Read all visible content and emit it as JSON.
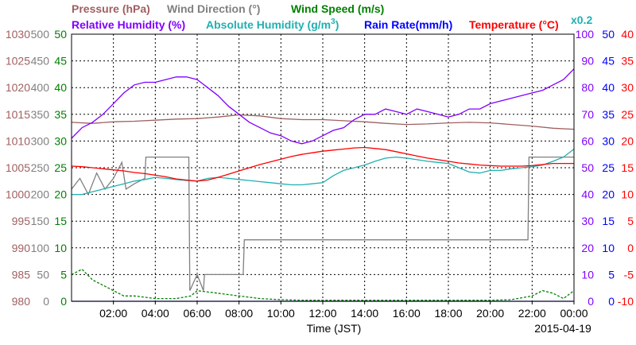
{
  "chart_data": {
    "type": "line",
    "date": "2015-04-19",
    "xlabel": "Time (JST)",
    "x_ticks": [
      "02:00",
      "04:00",
      "06:00",
      "08:00",
      "10:00",
      "12:00",
      "14:00",
      "16:00",
      "18:00",
      "20:00",
      "22:00",
      "00:00"
    ],
    "xlim_hours": [
      0,
      24
    ],
    "grid": true,
    "legend": [
      {
        "text": "Pressure (hPa)",
        "color": "#a06060"
      },
      {
        "text": "Wind Direction (°)",
        "color": "#808080"
      },
      {
        "text": "Wind Speed (m/s)",
        "color": "#008000"
      },
      {
        "text": "Relative Humidity (%)",
        "color": "#8000ff"
      },
      {
        "text": "Absolute Humidity (g/m",
        "sup": "3",
        "close": ")",
        "color": "#20b0b0"
      },
      {
        "text": "Rain Rate(mm/h)",
        "color": "#0000ff"
      },
      {
        "text": "Temperature (°C)",
        "color": "#ff0000"
      },
      {
        "text": "x0.2",
        "color": "#20b0b0"
      }
    ],
    "axes": {
      "pressure": {
        "color": "#a06060",
        "ylim": [
          980,
          1030
        ],
        "ticks": [
          "980",
          "985",
          "990",
          "995",
          "1000",
          "1005",
          "1010",
          "1015",
          "1020",
          "1025",
          "1030"
        ]
      },
      "wind_direction": {
        "color": "#808080",
        "ylim": [
          0,
          500
        ],
        "ticks": [
          "0",
          "50",
          "100",
          "150",
          "200",
          "250",
          "300",
          "350",
          "400",
          "450",
          "500"
        ]
      },
      "wind_speed": {
        "color": "#008000",
        "ylim": [
          0,
          50
        ],
        "ticks": [
          "0",
          "5",
          "10",
          "15",
          "20",
          "25",
          "30",
          "35",
          "40",
          "45",
          "50"
        ]
      },
      "relative_humidity": {
        "color": "#8000ff",
        "ylim": [
          0,
          100
        ],
        "ticks": [
          "0",
          "10",
          "20",
          "30",
          "40",
          "50",
          "60",
          "70",
          "80",
          "90",
          "100"
        ]
      },
      "rain_rate": {
        "color": "#0000ff",
        "ylim": [
          0,
          50
        ],
        "ticks": [
          "0",
          "5",
          "10",
          "15",
          "20",
          "25",
          "30",
          "35",
          "40",
          "45",
          "50"
        ]
      },
      "temperature": {
        "color": "#ff0000",
        "ylim": [
          -10,
          40
        ],
        "ticks": [
          "-10",
          "-5",
          "0",
          "5",
          "10",
          "15",
          "20",
          "25",
          "30",
          "35",
          "40"
        ]
      }
    },
    "series": [
      {
        "name": "Pressure (hPa)",
        "axis": "pressure",
        "color": "#a06060",
        "x": [
          0,
          1,
          2,
          3,
          4,
          5,
          6,
          7,
          8,
          9,
          10,
          11,
          12,
          13,
          14,
          15,
          16,
          17,
          18,
          19,
          20,
          21,
          22,
          23,
          24
        ],
        "y": [
          1013.5,
          1013.3,
          1013.6,
          1013.7,
          1013.9,
          1014.1,
          1014.2,
          1014.5,
          1014.9,
          1014.7,
          1014.2,
          1014.0,
          1014.0,
          1013.8,
          1013.6,
          1013.3,
          1013.1,
          1013.2,
          1013.4,
          1013.5,
          1013.4,
          1013.1,
          1012.8,
          1012.4,
          1012.2
        ]
      },
      {
        "name": "Wind Direction (°)",
        "axis": "wind_direction",
        "color": "#808080",
        "x": [
          0,
          0.4,
          0.8,
          1.2,
          1.6,
          2.0,
          2.4,
          2.6,
          3.0,
          3.5,
          3.55,
          5.0,
          5.6,
          5.65,
          6.0,
          6.3,
          6.35,
          8.2,
          8.25,
          21.8,
          21.85,
          24
        ],
        "y": [
          210,
          230,
          200,
          240,
          210,
          230,
          260,
          210,
          220,
          230,
          270,
          270,
          270,
          20,
          50,
          20,
          50,
          50,
          115,
          115,
          270,
          270
        ]
      },
      {
        "name": "Wind Speed (m/s)",
        "axis": "wind_speed",
        "color": "#008000",
        "dashed": true,
        "x": [
          0,
          0.5,
          1,
          1.5,
          2,
          2.5,
          3,
          4,
          5,
          5.7,
          6,
          7,
          8,
          9,
          10,
          11,
          12,
          14,
          16,
          18,
          20,
          21,
          22,
          22.5,
          23,
          23.5,
          24
        ],
        "y": [
          5,
          6,
          4,
          3,
          2,
          1,
          1,
          0.5,
          0.5,
          1,
          2,
          1.5,
          1,
          0.5,
          0.3,
          0.2,
          0.2,
          0.2,
          0.2,
          0.2,
          0.2,
          0.3,
          1,
          2,
          1.5,
          0.5,
          2
        ]
      },
      {
        "name": "Relative Humidity (%)",
        "axis": "relative_humidity",
        "color": "#8000ff",
        "x": [
          0,
          0.5,
          1,
          1.5,
          2,
          2.5,
          3,
          3.5,
          4,
          4.5,
          5,
          5.5,
          6,
          6.5,
          7,
          7.5,
          8,
          8.5,
          9,
          9.5,
          10,
          10.5,
          11,
          11.5,
          12,
          12.5,
          13,
          13.5,
          14,
          14.5,
          15,
          15.5,
          16,
          16.5,
          17,
          17.5,
          18,
          18.5,
          19,
          19.5,
          20,
          20.5,
          21,
          21.5,
          22,
          22.5,
          23,
          23.5,
          24
        ],
        "y": [
          61,
          65,
          67,
          70,
          74,
          78,
          81,
          82,
          82,
          83,
          84,
          84,
          83,
          80,
          77,
          73,
          70,
          67,
          65,
          63,
          62,
          60,
          59,
          60,
          62,
          64,
          65,
          68,
          70,
          70,
          72,
          71,
          70,
          72,
          71,
          70,
          69,
          70,
          72,
          72,
          74,
          75,
          76,
          77,
          78,
          79,
          81,
          83,
          87
        ]
      },
      {
        "name": "Absolute Humidity (g/m3)",
        "axis": "wind_direction",
        "color": "#20b0b0",
        "x": [
          0,
          0.5,
          1,
          1.5,
          2,
          2.5,
          3,
          3.5,
          4,
          4.5,
          5,
          5.5,
          6,
          6.5,
          7,
          7.5,
          8,
          8.5,
          9,
          9.5,
          10,
          10.5,
          11,
          11.5,
          12,
          12.5,
          13,
          13.5,
          14,
          14.5,
          15,
          15.5,
          16,
          16.5,
          17,
          17.5,
          18,
          18.5,
          19,
          19.5,
          20,
          20.5,
          21,
          21.5,
          22,
          22.5,
          23,
          23.5,
          24
        ],
        "y": [
          200,
          200,
          205,
          210,
          215,
          220,
          225,
          228,
          232,
          230,
          228,
          226,
          225,
          230,
          232,
          230,
          228,
          226,
          224,
          222,
          220,
          218,
          218,
          220,
          222,
          235,
          245,
          250,
          255,
          262,
          268,
          270,
          268,
          265,
          262,
          260,
          258,
          250,
          242,
          240,
          245,
          245,
          248,
          250,
          252,
          255,
          262,
          270,
          285
        ]
      },
      {
        "name": "Rain Rate(mm/h)",
        "axis": "rain_rate",
        "color": "#0000ff",
        "x": [
          0,
          24
        ],
        "y": [
          0,
          0
        ]
      },
      {
        "name": "Temperature (°C)",
        "axis": "temperature",
        "color": "#ff0000",
        "x": [
          0,
          0.5,
          1,
          1.5,
          2,
          2.5,
          3,
          3.5,
          4,
          4.5,
          5,
          5.5,
          6,
          6.5,
          7,
          7.5,
          8,
          8.5,
          9,
          9.5,
          10,
          10.5,
          11,
          11.5,
          12,
          12.5,
          13,
          13.5,
          14,
          14.5,
          15,
          15.5,
          16,
          16.5,
          17,
          17.5,
          18,
          18.5,
          19,
          19.5,
          20,
          20.5,
          21,
          21.5,
          22,
          22.5,
          23,
          23.5,
          24
        ],
        "y": [
          15.3,
          15.2,
          15.0,
          14.8,
          14.6,
          14.4,
          14.1,
          13.9,
          13.6,
          13.3,
          12.9,
          12.7,
          12.5,
          12.7,
          13.2,
          13.8,
          14.4,
          15.0,
          15.6,
          16.1,
          16.6,
          17.1,
          17.5,
          17.8,
          18.1,
          18.3,
          18.5,
          18.7,
          18.8,
          18.6,
          18.4,
          18.0,
          17.6,
          17.2,
          16.8,
          16.5,
          16.2,
          15.9,
          15.7,
          15.5,
          15.4,
          15.3,
          15.3,
          15.3,
          15.4,
          15.6,
          15.8,
          15.8,
          15.8
        ]
      }
    ]
  }
}
